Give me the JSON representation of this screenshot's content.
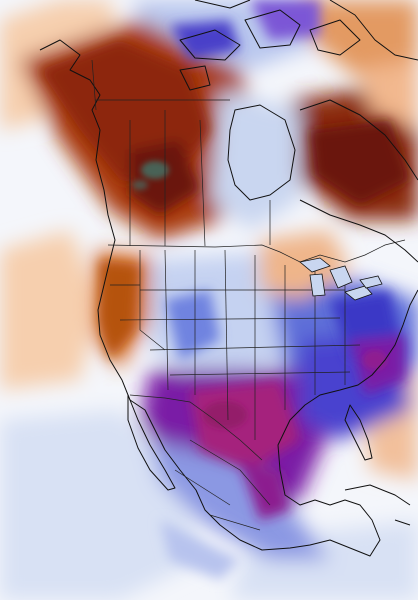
{
  "map": {
    "type": "temperature-anomaly",
    "palette": {
      "very_warm": "#6b1308",
      "warm": "#a93b0a",
      "mild_warm": "#e39a62",
      "slight_warm": "#f6cfae",
      "neutral": "#f7f7f7",
      "slight_cool": "#c9d6f0",
      "cool": "#6f83e0",
      "cold": "#3a38c6",
      "very_cold": "#7a1fa6",
      "extreme_cold": "#a5207d",
      "hot_core": "#3f7b6f",
      "boundary": "#111111"
    }
  }
}
